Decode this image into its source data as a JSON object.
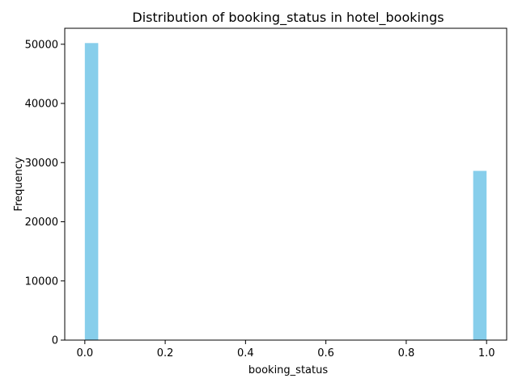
{
  "chart_data": {
    "type": "bar",
    "title": "Distribution of booking_status in hotel_bookings",
    "xlabel": "booking_status",
    "ylabel": "Frequency",
    "xlim": [
      -0.05,
      1.05
    ],
    "ylim": [
      0,
      52700
    ],
    "bins": 30,
    "bin_width": 0.0333333,
    "bars": [
      {
        "x_start": 0.0,
        "x_end": 0.0333333,
        "value": 50200
      },
      {
        "x_start": 0.9666667,
        "x_end": 1.0,
        "value": 28600
      }
    ],
    "xticks": [
      0.0,
      0.2,
      0.4,
      0.6,
      0.8,
      1.0
    ],
    "xtick_labels": [
      "0.0",
      "0.2",
      "0.4",
      "0.6",
      "0.8",
      "1.0"
    ],
    "yticks": [
      0,
      10000,
      20000,
      30000,
      40000,
      50000
    ],
    "ytick_labels": [
      "0",
      "10000",
      "20000",
      "30000",
      "40000",
      "50000"
    ],
    "bar_color": "#87CEEB",
    "grid": false,
    "legend": "none"
  }
}
